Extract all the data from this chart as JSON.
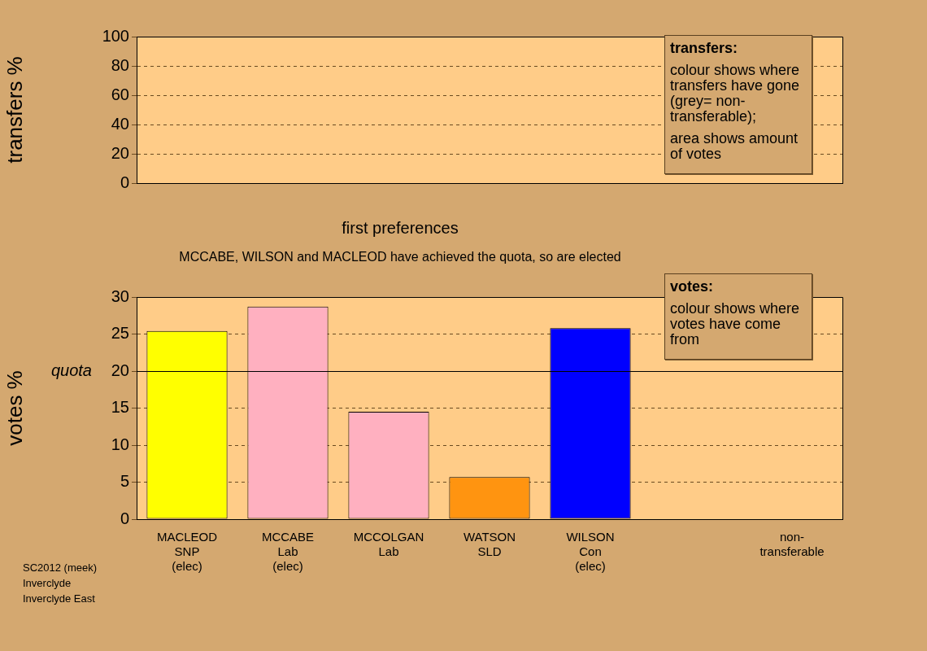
{
  "chart_data": [
    {
      "type": "bar",
      "ylabel": "transfers %",
      "categories": [
        null,
        null,
        null,
        null,
        null,
        null,
        null
      ],
      "values": [
        null,
        null,
        null,
        null,
        null,
        null,
        null
      ],
      "ylim": [
        0,
        100
      ],
      "yticks": [
        0,
        20,
        40,
        60,
        80,
        100
      ],
      "grid": "y",
      "tick_labels": "y",
      "legend": false,
      "annotations": [
        "transfers:",
        "colour shows where transfers have gone (grey= non-transferable);",
        "area shows amount of votes"
      ]
    },
    {
      "type": "bar",
      "title": "first preferences",
      "subtitle": "MCCABE, WILSON and MACLEOD have achieved the quota, so are elected",
      "ylabel": "votes %",
      "categories": [
        "MACLEOD\nSNP\n(elec)",
        "MCCABE\nLab\n(elec)",
        "MCCOLGAN\nLab",
        "WATSON\nSLD",
        "WILSON\nCon\n(elec)",
        null,
        "non-\ntransferable"
      ],
      "values": [
        25.4,
        28.7,
        14.5,
        5.7,
        25.8,
        null,
        0
      ],
      "colors": [
        "#ffff00",
        "#ffb0c0",
        "#ffb0c0",
        "#ff9410",
        "#0000ff",
        null,
        "#a0a0a0"
      ],
      "ylim": [
        0,
        30
      ],
      "yticks": [
        0,
        5,
        10,
        15,
        {
          "value": 20,
          "label": "20"
        },
        25,
        30
      ],
      "grid": "y",
      "legend": false,
      "ref_lines": [
        {
          "axis": "y",
          "value": 20,
          "label": "quota"
        }
      ],
      "annotations": [
        "votes:",
        "colour shows where votes have come from",
        "SC2012 (meek)",
        "Inverclyde",
        "Inverclyde East"
      ]
    }
  ]
}
